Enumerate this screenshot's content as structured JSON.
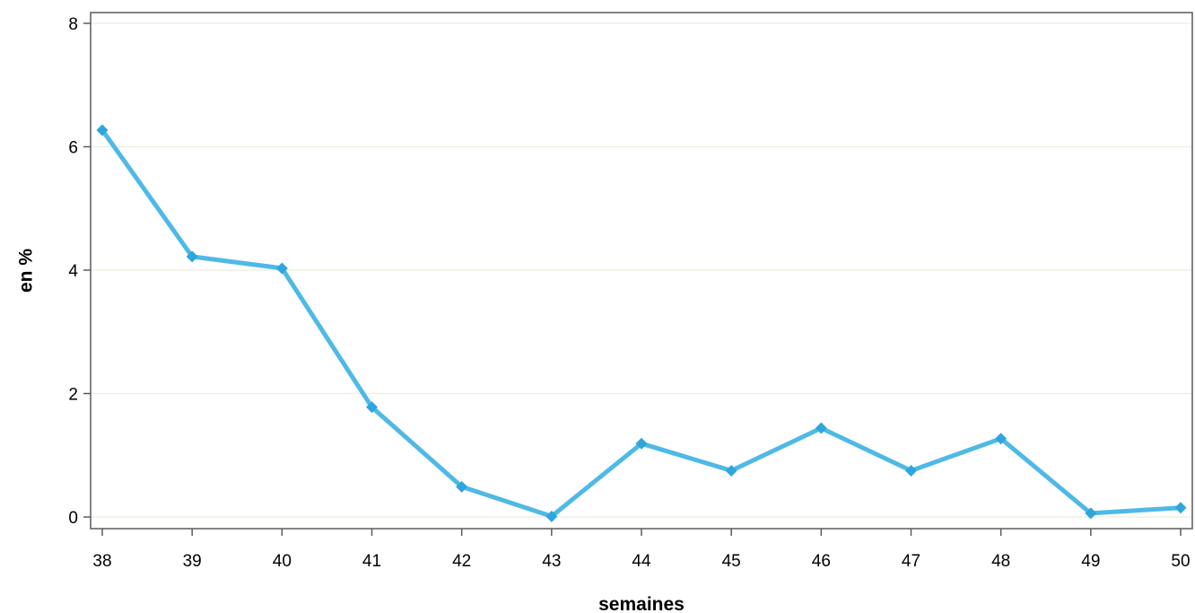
{
  "chart_data": {
    "type": "line",
    "title": "",
    "xlabel": "semaines",
    "ylabel": "en %",
    "x": [
      38,
      39,
      40,
      41,
      42,
      43,
      44,
      45,
      46,
      47,
      48,
      49,
      50
    ],
    "series": [
      {
        "values": [
          6.27,
          4.22,
          4.03,
          1.78,
          0.49,
          0.01,
          1.19,
          0.75,
          1.44,
          0.75,
          1.27,
          0.06,
          0.15
        ]
      }
    ],
    "xlim": [
      38,
      50
    ],
    "ylim": [
      0,
      8
    ],
    "yticks": [
      0,
      2,
      4,
      6,
      8
    ],
    "grid": true,
    "legend": "none",
    "colors": {
      "line": "#4FB9E6",
      "marker": "#2EA6DD",
      "grid": "#EFEFE2",
      "frame": "#5A5A5A"
    }
  }
}
